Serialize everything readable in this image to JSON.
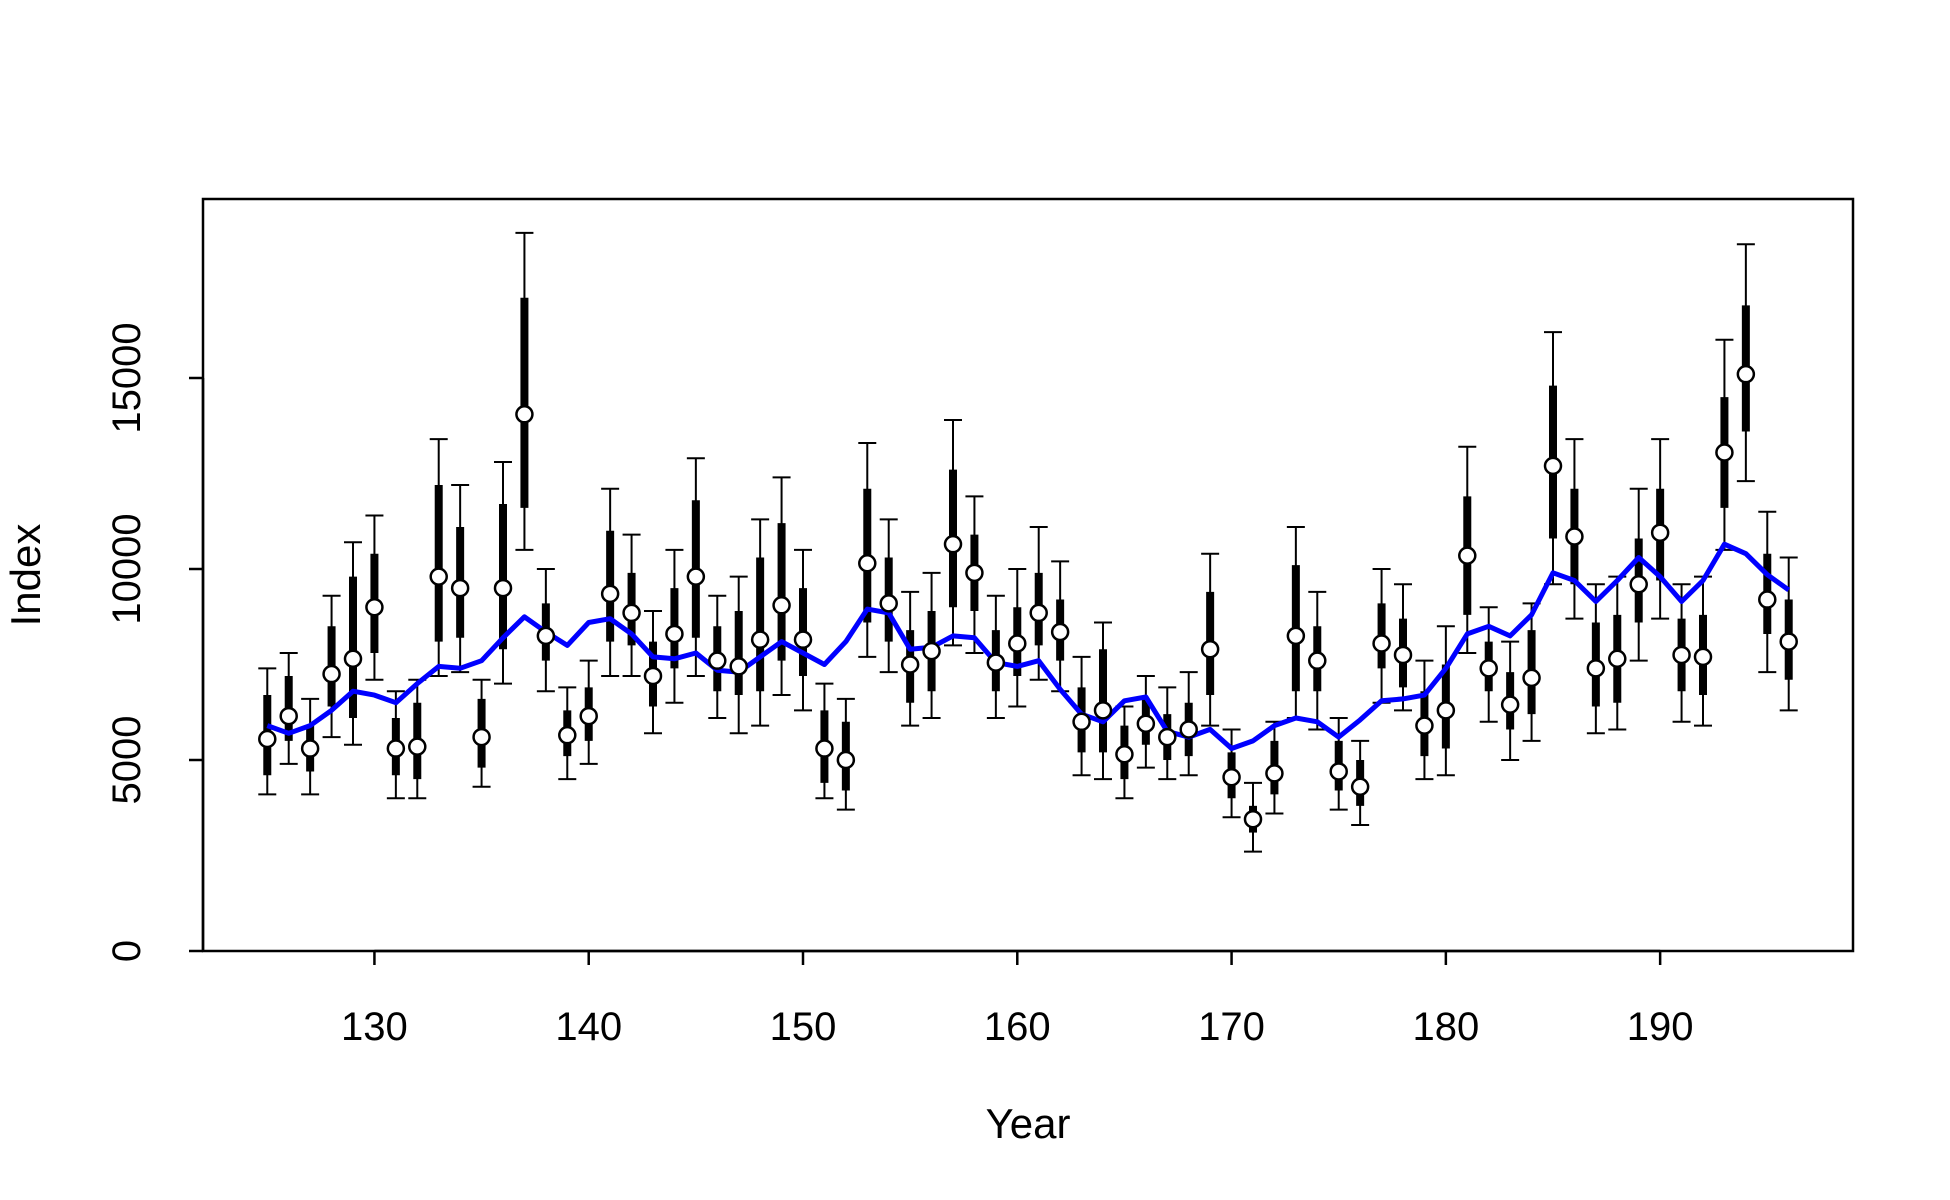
{
  "chart_data": {
    "type": "scatter",
    "title": "",
    "xlabel": "Year",
    "ylabel": "Index",
    "xlim": [
      122,
      199
    ],
    "ylim": [
      0,
      19500
    ],
    "x_ticks": [
      130,
      140,
      150,
      160,
      170,
      180,
      190
    ],
    "y_ticks": [
      0,
      5000,
      10000,
      15000
    ],
    "grid": false,
    "legend": "none",
    "colors": {
      "points": "#000000",
      "point_fill": "#ffffff",
      "line": "#0000ff"
    },
    "series": [
      {
        "type": "point-with-intervals",
        "x": [
          125,
          126,
          127,
          128,
          129,
          130,
          131,
          132,
          133,
          134,
          135,
          136,
          137,
          138,
          139,
          140,
          141,
          142,
          143,
          144,
          145,
          146,
          147,
          148,
          149,
          150,
          151,
          152,
          153,
          154,
          155,
          156,
          157,
          158,
          159,
          160,
          161,
          162,
          163,
          164,
          165,
          166,
          167,
          168,
          169,
          170,
          171,
          172,
          173,
          174,
          175,
          176,
          177,
          178,
          179,
          180,
          181,
          182,
          183,
          184,
          185,
          186,
          187,
          188,
          189,
          190,
          191,
          192,
          193,
          194,
          195,
          196
        ],
        "y": [
          5550,
          6150,
          5300,
          7250,
          7650,
          9000,
          5300,
          5350,
          9800,
          9500,
          5600,
          9500,
          14050,
          8250,
          5650,
          6150,
          9350,
          8850,
          7200,
          8300,
          9800,
          7600,
          7450,
          8150,
          9050,
          8150,
          5300,
          5000,
          10150,
          9100,
          7500,
          7850,
          10650,
          9900,
          7550,
          8050,
          8850,
          8350,
          6000,
          6300,
          5150,
          5950,
          5600,
          5800,
          7900,
          4550,
          3450,
          4650,
          8250,
          7600,
          4700,
          4300,
          8050,
          7750,
          5900,
          6300,
          10350,
          7400,
          6450,
          7150,
          12700,
          10850,
          7400,
          7650,
          9600,
          10950,
          7750,
          7700,
          13050,
          15100,
          9200,
          8100
        ],
        "inner_low": [
          4600,
          5500,
          4700,
          6400,
          6100,
          7800,
          4600,
          4500,
          8100,
          8200,
          4800,
          7900,
          11600,
          7600,
          5100,
          5500,
          8100,
          8000,
          6400,
          7400,
          8200,
          6800,
          6700,
          6800,
          7600,
          7200,
          4400,
          4200,
          8600,
          8100,
          6500,
          6800,
          9000,
          8900,
          6800,
          7200,
          8000,
          7600,
          5200,
          5200,
          4500,
          5400,
          5000,
          5100,
          6700,
          4000,
          3100,
          4100,
          6800,
          6800,
          4200,
          3800,
          7400,
          6900,
          5100,
          5300,
          8800,
          6800,
          5800,
          6200,
          10800,
          9600,
          6400,
          6500,
          8600,
          9700,
          6800,
          6700,
          11600,
          13600,
          8300,
          7100
        ],
        "inner_high": [
          6700,
          7200,
          5900,
          8500,
          9800,
          10400,
          6100,
          6500,
          12200,
          11100,
          6600,
          11700,
          17100,
          9100,
          6300,
          6900,
          11000,
          9900,
          8100,
          9500,
          11800,
          8500,
          8900,
          10300,
          11200,
          9500,
          6300,
          6000,
          12100,
          10300,
          8400,
          8900,
          12600,
          10900,
          8400,
          9000,
          9900,
          9200,
          6900,
          7900,
          5900,
          6600,
          6200,
          6500,
          9400,
          5200,
          3800,
          5500,
          10100,
          8500,
          5500,
          5000,
          9100,
          8700,
          6800,
          7500,
          11900,
          8100,
          7300,
          8400,
          14800,
          12100,
          8600,
          8800,
          10800,
          12100,
          8700,
          8800,
          14500,
          16900,
          10400,
          9200
        ],
        "outer_low": [
          4100,
          4900,
          4100,
          5600,
          5400,
          7100,
          4000,
          4000,
          7200,
          7300,
          4300,
          7000,
          10500,
          6800,
          4500,
          4900,
          7200,
          7200,
          5700,
          6500,
          7200,
          6100,
          5700,
          5900,
          6700,
          6300,
          4000,
          3700,
          7700,
          7300,
          5900,
          6100,
          8000,
          7800,
          6100,
          6400,
          7100,
          6800,
          4600,
          4500,
          4000,
          4800,
          4500,
          4600,
          5900,
          3500,
          2600,
          3600,
          6100,
          5800,
          3700,
          3300,
          6500,
          6300,
          4500,
          4600,
          7800,
          6000,
          5000,
          5500,
          9600,
          8700,
          5700,
          5800,
          7600,
          8700,
          6000,
          5900,
          10500,
          12300,
          7300,
          6300
        ],
        "outer_high": [
          7400,
          7800,
          6600,
          9300,
          10700,
          11400,
          6800,
          7100,
          13400,
          12200,
          7100,
          12800,
          18800,
          10000,
          6900,
          7600,
          12100,
          10900,
          8900,
          10500,
          12900,
          9300,
          9800,
          11300,
          12400,
          10500,
          7000,
          6600,
          13300,
          11300,
          9400,
          9900,
          13900,
          11900,
          9300,
          10000,
          11100,
          10200,
          7700,
          8600,
          6400,
          7200,
          6900,
          7300,
          10400,
          5800,
          4400,
          6000,
          11100,
          9400,
          6100,
          5500,
          10000,
          9600,
          7600,
          8500,
          13200,
          9000,
          8100,
          9100,
          16200,
          13400,
          9600,
          9800,
          12100,
          13400,
          9600,
          9800,
          16000,
          18500,
          11500,
          10300
        ]
      },
      {
        "type": "line",
        "x": [
          125,
          126,
          127,
          128,
          129,
          130,
          131,
          132,
          133,
          134,
          135,
          136,
          137,
          138,
          139,
          140,
          141,
          142,
          143,
          144,
          145,
          146,
          147,
          148,
          149,
          150,
          151,
          152,
          153,
          154,
          155,
          156,
          157,
          158,
          159,
          160,
          161,
          162,
          163,
          164,
          165,
          166,
          167,
          168,
          169,
          170,
          171,
          172,
          173,
          174,
          175,
          176,
          177,
          178,
          179,
          180,
          181,
          182,
          183,
          184,
          185,
          186,
          187,
          188,
          189,
          190,
          191,
          192,
          193,
          194,
          195,
          196
        ],
        "y": [
          5900,
          5700,
          5900,
          6300,
          6800,
          6700,
          6500,
          7000,
          7450,
          7400,
          7600,
          8200,
          8750,
          8350,
          8000,
          8600,
          8700,
          8300,
          7700,
          7650,
          7800,
          7350,
          7300,
          7700,
          8100,
          7800,
          7500,
          8100,
          8950,
          8850,
          7900,
          7950,
          8250,
          8200,
          7550,
          7450,
          7600,
          6850,
          6200,
          6000,
          6550,
          6650,
          5750,
          5600,
          5800,
          5300,
          5500,
          5900,
          6100,
          6000,
          5600,
          6050,
          6550,
          6600,
          6700,
          7400,
          8300,
          8500,
          8250,
          8800,
          9900,
          9700,
          9150,
          9700,
          10300,
          9800,
          9150,
          9700,
          10650,
          10400,
          9850,
          9450
        ]
      }
    ]
  }
}
